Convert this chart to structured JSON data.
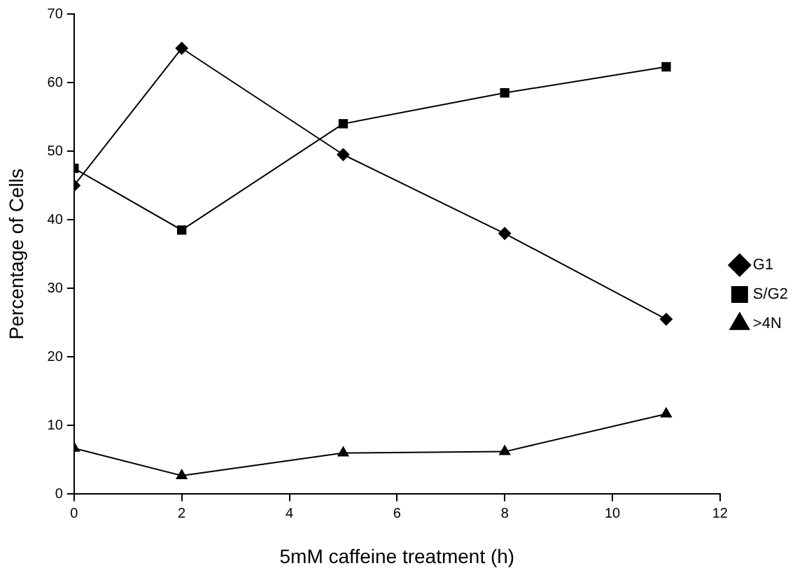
{
  "chart_data": {
    "type": "line",
    "xlabel": "5mM caffeine treatment (h)",
    "ylabel": "Percentage of Cells",
    "x": [
      0,
      2,
      5,
      8,
      11
    ],
    "series": [
      {
        "name": "G1",
        "color": "#000000",
        "marker": "diamond",
        "values": [
          45,
          65,
          49.5,
          38,
          25.5
        ]
      },
      {
        "name": "S/G2",
        "color": "#000000",
        "marker": "square",
        "values": [
          47.5,
          38.5,
          54,
          58.5,
          62.3
        ]
      },
      {
        "name": ">4N",
        "color": "#000000",
        "marker": "triangle",
        "values": [
          6.7,
          2.7,
          6,
          6.2,
          11.7
        ]
      }
    ],
    "xlim": [
      0,
      12
    ],
    "xticks": [
      0,
      2,
      4,
      6,
      8,
      10,
      12
    ],
    "ylim": [
      0,
      70
    ],
    "yticks": [
      0,
      10,
      20,
      30,
      40,
      50,
      60,
      70
    ],
    "grid": false,
    "legend": "right",
    "line_style": "solid"
  }
}
